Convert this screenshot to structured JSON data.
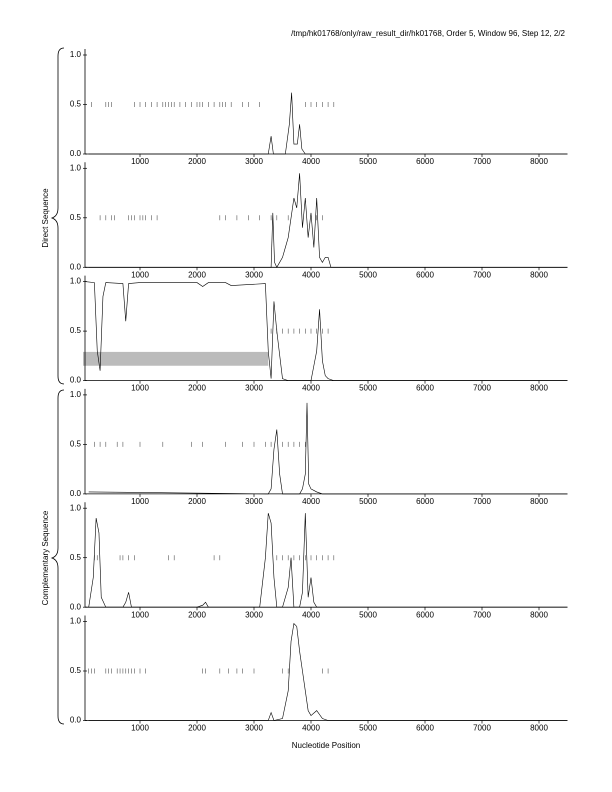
{
  "title": "/tmp/hk01768/only/raw_result_dir/hk01768, Order 5, Window 96, Step 12, 2/2",
  "xlabel": "Nucleotide Position",
  "group_labels": [
    "Direct Sequence",
    "Complementary Sequence"
  ],
  "chart_data": [
    {
      "type": "line",
      "xlim": [
        0,
        8500
      ],
      "ylim": [
        0,
        1
      ],
      "xticks": [
        1000,
        2000,
        3000,
        4000,
        5000,
        6000,
        7000,
        8000
      ],
      "yticks": [
        {
          "value": 0,
          "label": "0.0"
        },
        {
          "value": 0.5,
          "label": "0.5"
        },
        {
          "value": 1,
          "label": "1.0"
        }
      ],
      "x": [
        100,
        3250,
        3300,
        3340,
        3550,
        3620,
        3660,
        3700,
        3760,
        3800,
        3840,
        3900,
        8500
      ],
      "series": [
        {
          "color": "#000000",
          "values": [
            0,
            0,
            0.18,
            0,
            0,
            0.3,
            0.62,
            0.1,
            0.1,
            0.3,
            0.05,
            0,
            0
          ]
        }
      ],
      "markers": [
        150,
        400,
        450,
        500,
        900,
        1000,
        1100,
        1200,
        1300,
        1400,
        1450,
        1500,
        1550,
        1600,
        1700,
        1800,
        1900,
        2000,
        2050,
        2100,
        2200,
        2300,
        2400,
        2450,
        2500,
        2600,
        2800,
        2900,
        3100,
        3900,
        4000,
        4100,
        4200,
        4300,
        4400
      ]
    },
    {
      "type": "line",
      "xlim": [
        0,
        8500
      ],
      "ylim": [
        0,
        1
      ],
      "xticks": [
        1000,
        2000,
        3000,
        4000,
        5000,
        6000,
        7000,
        8000
      ],
      "yticks": [
        {
          "value": 0,
          "label": "0.0"
        },
        {
          "value": 0.5,
          "label": "0.5"
        },
        {
          "value": 1,
          "label": "1.0"
        }
      ],
      "x": [
        100,
        3300,
        3330,
        3360,
        3400,
        3500,
        3550,
        3600,
        3650,
        3700,
        3750,
        3800,
        3850,
        3900,
        3950,
        4000,
        4050,
        4100,
        4150,
        4200,
        4250,
        4300,
        4350,
        8500
      ],
      "series": [
        {
          "color": "#000000",
          "values": [
            0,
            0,
            0.55,
            0.05,
            0,
            0.1,
            0.2,
            0.3,
            0.5,
            0.7,
            0.6,
            0.95,
            0.4,
            0.7,
            0.3,
            0.55,
            0.2,
            0.7,
            0.1,
            0.05,
            0.1,
            0.1,
            0,
            0
          ]
        }
      ],
      "markers": [
        300,
        400,
        500,
        550,
        800,
        850,
        900,
        1000,
        1050,
        1100,
        1200,
        1300,
        2400,
        2500,
        2700,
        2900,
        3100,
        3300,
        3400,
        3600,
        4100,
        4200
      ]
    },
    {
      "type": "line",
      "xlim": [
        0,
        8500
      ],
      "ylim": [
        0,
        1
      ],
      "xticks": [
        1000,
        2000,
        3000,
        4000,
        5000,
        6000,
        7000,
        8000
      ],
      "yticks": [
        {
          "value": 0,
          "label": "0.0"
        },
        {
          "value": 0.5,
          "label": "0.5"
        },
        {
          "value": 1,
          "label": "1.0"
        }
      ],
      "x": [
        30,
        200,
        250,
        300,
        350,
        400,
        700,
        750,
        800,
        1000,
        2000,
        2100,
        2200,
        2500,
        2600,
        3200,
        3250,
        3300,
        3350,
        3400,
        3500,
        3600,
        4000,
        4050,
        4100,
        4150,
        4200,
        4250,
        4300,
        4400,
        8500
      ],
      "series": [
        {
          "color": "#000000",
          "values": [
            1,
            0.99,
            0.3,
            0.1,
            0.85,
            0.99,
            0.98,
            0.6,
            0.98,
            0.99,
            0.99,
            0.95,
            0.99,
            0.99,
            0.96,
            0.98,
            0.3,
            0.02,
            0.8,
            0.5,
            0.02,
            0,
            0,
            0.15,
            0.3,
            0.72,
            0.2,
            0.05,
            0.02,
            0,
            0
          ]
        }
      ],
      "markers": [
        3300,
        3400,
        3500,
        3600,
        3700,
        3800,
        3900,
        4000,
        4100,
        4200,
        4300
      ],
      "band": {
        "x": [
          0,
          3250
        ],
        "y": [
          0.15,
          0.29
        ],
        "color": "#bbbbbb"
      }
    },
    {
      "type": "line",
      "xlim": [
        0,
        8500
      ],
      "ylim": [
        0,
        1
      ],
      "xticks": [
        1000,
        2000,
        3000,
        4000,
        5000,
        6000,
        7000,
        8000
      ],
      "yticks": [
        {
          "value": 0,
          "label": "0.0"
        },
        {
          "value": 0.5,
          "label": "0.5"
        },
        {
          "value": 1,
          "label": "1.0"
        }
      ],
      "x": [
        100,
        3250,
        3300,
        3350,
        3400,
        3450,
        3500,
        3800,
        3850,
        3900,
        3930,
        3960,
        4000,
        4100,
        4200,
        8500
      ],
      "series": [
        {
          "color": "#000000",
          "values": [
            0.02,
            0,
            0.05,
            0.45,
            0.65,
            0.2,
            0,
            0,
            0.05,
            0.2,
            0.92,
            0.1,
            0.05,
            0.02,
            0,
            0
          ]
        }
      ],
      "markers": [
        200,
        300,
        400,
        600,
        700,
        1000,
        1400,
        1900,
        2100,
        2500,
        2800,
        3000,
        3200,
        3300,
        3500,
        3600,
        3700,
        3800,
        3900
      ]
    },
    {
      "type": "line",
      "xlim": [
        0,
        8500
      ],
      "ylim": [
        0,
        1
      ],
      "xticks": [
        1000,
        2000,
        3000,
        4000,
        5000,
        6000,
        7000,
        8000
      ],
      "yticks": [
        {
          "value": 0,
          "label": "0.0"
        },
        {
          "value": 0.5,
          "label": "0.5"
        },
        {
          "value": 1,
          "label": "1.0"
        }
      ],
      "x": [
        100,
        180,
        230,
        280,
        320,
        400,
        700,
        750,
        800,
        850,
        2000,
        2100,
        2150,
        2200,
        3100,
        3200,
        3250,
        3300,
        3350,
        3400,
        3500,
        3600,
        3650,
        3700,
        3800,
        3850,
        3900,
        3950,
        4000,
        4050,
        4100,
        8500
      ],
      "series": [
        {
          "color": "#000000",
          "values": [
            0,
            0.3,
            0.9,
            0.75,
            0.1,
            0,
            0,
            0.05,
            0.15,
            0,
            0,
            0.02,
            0.05,
            0,
            0,
            0.5,
            0.95,
            0.85,
            0.3,
            0,
            0,
            0.2,
            0.5,
            0,
            0,
            0.15,
            0.95,
            0.1,
            0.3,
            0.05,
            0,
            0
          ]
        }
      ],
      "markers": [
        200,
        250,
        650,
        700,
        800,
        900,
        1500,
        1600,
        2300,
        2400,
        3400,
        3500,
        3600,
        3700,
        3800,
        3900,
        4000,
        4100,
        4200,
        4300,
        4400
      ]
    },
    {
      "type": "line",
      "xlim": [
        0,
        8500
      ],
      "ylim": [
        0,
        1
      ],
      "xticks": [
        1000,
        2000,
        3000,
        4000,
        5000,
        6000,
        7000,
        8000
      ],
      "yticks": [
        {
          "value": 0,
          "label": "0.0"
        },
        {
          "value": 0.5,
          "label": "0.5"
        },
        {
          "value": 1,
          "label": "1.0"
        }
      ],
      "x": [
        100,
        3250,
        3300,
        3350,
        3500,
        3600,
        3650,
        3700,
        3750,
        3800,
        3850,
        3900,
        3950,
        4000,
        4100,
        4200,
        4300,
        8500
      ],
      "series": [
        {
          "color": "#000000",
          "values": [
            0,
            0,
            0.08,
            0,
            0.02,
            0.3,
            0.8,
            0.98,
            0.95,
            0.7,
            0.5,
            0.3,
            0.1,
            0.05,
            0.1,
            0.02,
            0,
            0
          ]
        }
      ],
      "markers": [
        100,
        150,
        200,
        400,
        450,
        500,
        600,
        650,
        700,
        750,
        800,
        850,
        900,
        1000,
        1100,
        2100,
        2150,
        2400,
        2550,
        2700,
        2800,
        3000,
        3500,
        3600,
        4200,
        4300
      ]
    }
  ]
}
